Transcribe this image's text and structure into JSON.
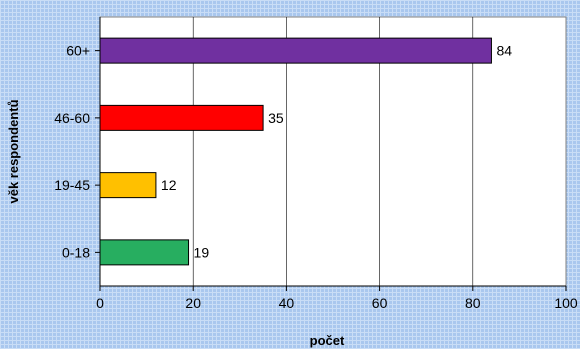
{
  "chart_data": {
    "type": "bar",
    "orientation": "horizontal",
    "categories": [
      "60+",
      "46-60",
      "19-45",
      "0-18"
    ],
    "values": [
      84,
      35,
      12,
      19
    ],
    "colors": [
      "#7030a0",
      "#ff0000",
      "#ffc000",
      "#27ae60"
    ],
    "xlabel": "počet",
    "ylabel": "věk respondentů",
    "xlim": [
      0,
      100
    ],
    "xticks": [
      0,
      20,
      40,
      60,
      80,
      100
    ],
    "grid": true,
    "legend": "none"
  },
  "colors": {
    "plot_background": "#ffffff",
    "page_background": "#a9c7ee",
    "gridline": "#000000"
  }
}
